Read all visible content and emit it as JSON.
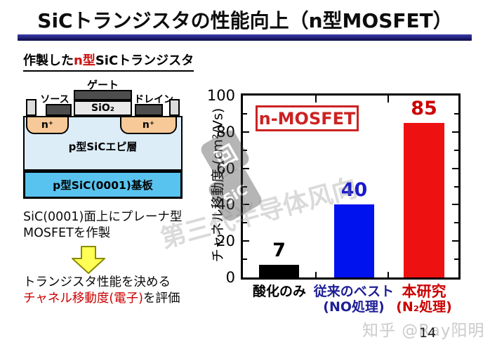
{
  "slide": {
    "title": "SiCトランジスタの性能向上（n型MOSFET）",
    "page_number": "14"
  },
  "left_panel": {
    "heading": {
      "pre": "作製した",
      "highlight": "n型",
      "post": "SiCトランジスタ"
    },
    "device": {
      "gate_label": "ゲート",
      "source_label": "ソース",
      "drain_label": "ドレイン",
      "oxide_label": "SiO₂",
      "nplus_left": "n⁺",
      "nplus_right": "n⁺",
      "epi_label": "p型SiCエピ層",
      "substrate_label": "p型SiC(0001)基板"
    },
    "device_colors": {
      "metal": "#4d4d4d",
      "oxide": "#e9e9e9",
      "body": "#dcdcdc",
      "nplus": "#f7c998",
      "epi": "#dcedf8",
      "substrate": "#58c3ee"
    },
    "caption_fab": {
      "line1": "SiC(0001)面上にプレーナ型",
      "line2": "MOSFETを作製"
    },
    "caption_eval": {
      "line1": "トランジスタ性能を決める",
      "line2_red": "チャネル移動度(電子)",
      "line2_black": "を評価"
    }
  },
  "chart_data": {
    "type": "bar",
    "title": "",
    "legend": "n-MOSFET",
    "legend_position": "top-left",
    "xlabel": "",
    "ylabel": "チャネル移動度 (cm²/Vs)",
    "ylim": [
      0,
      100
    ],
    "yticks": [
      100,
      80,
      60,
      40,
      20,
      0
    ],
    "grid": false,
    "categories": [
      {
        "line1": "酸化のみ",
        "line2": "",
        "color": "#000000"
      },
      {
        "line1": "従来のベスト",
        "line2": "(NO処理)",
        "color": "#1e1e96"
      },
      {
        "line1": "本研究",
        "line2": "(N₂処理)",
        "color": "#cc0000"
      }
    ],
    "values": [
      7,
      40,
      85
    ],
    "bar_colors": [
      "#000000",
      "#0012ee",
      "#ee1111"
    ],
    "value_label_colors": [
      "#000000",
      "#1a1acc",
      "#cc0000"
    ]
  },
  "watermarks": {
    "logo_top_glyph": "回",
    "logo_bottom_text": "SiC",
    "diagonal_text": "第三代半导体风向",
    "credit": "知乎 @Ray阳明"
  }
}
